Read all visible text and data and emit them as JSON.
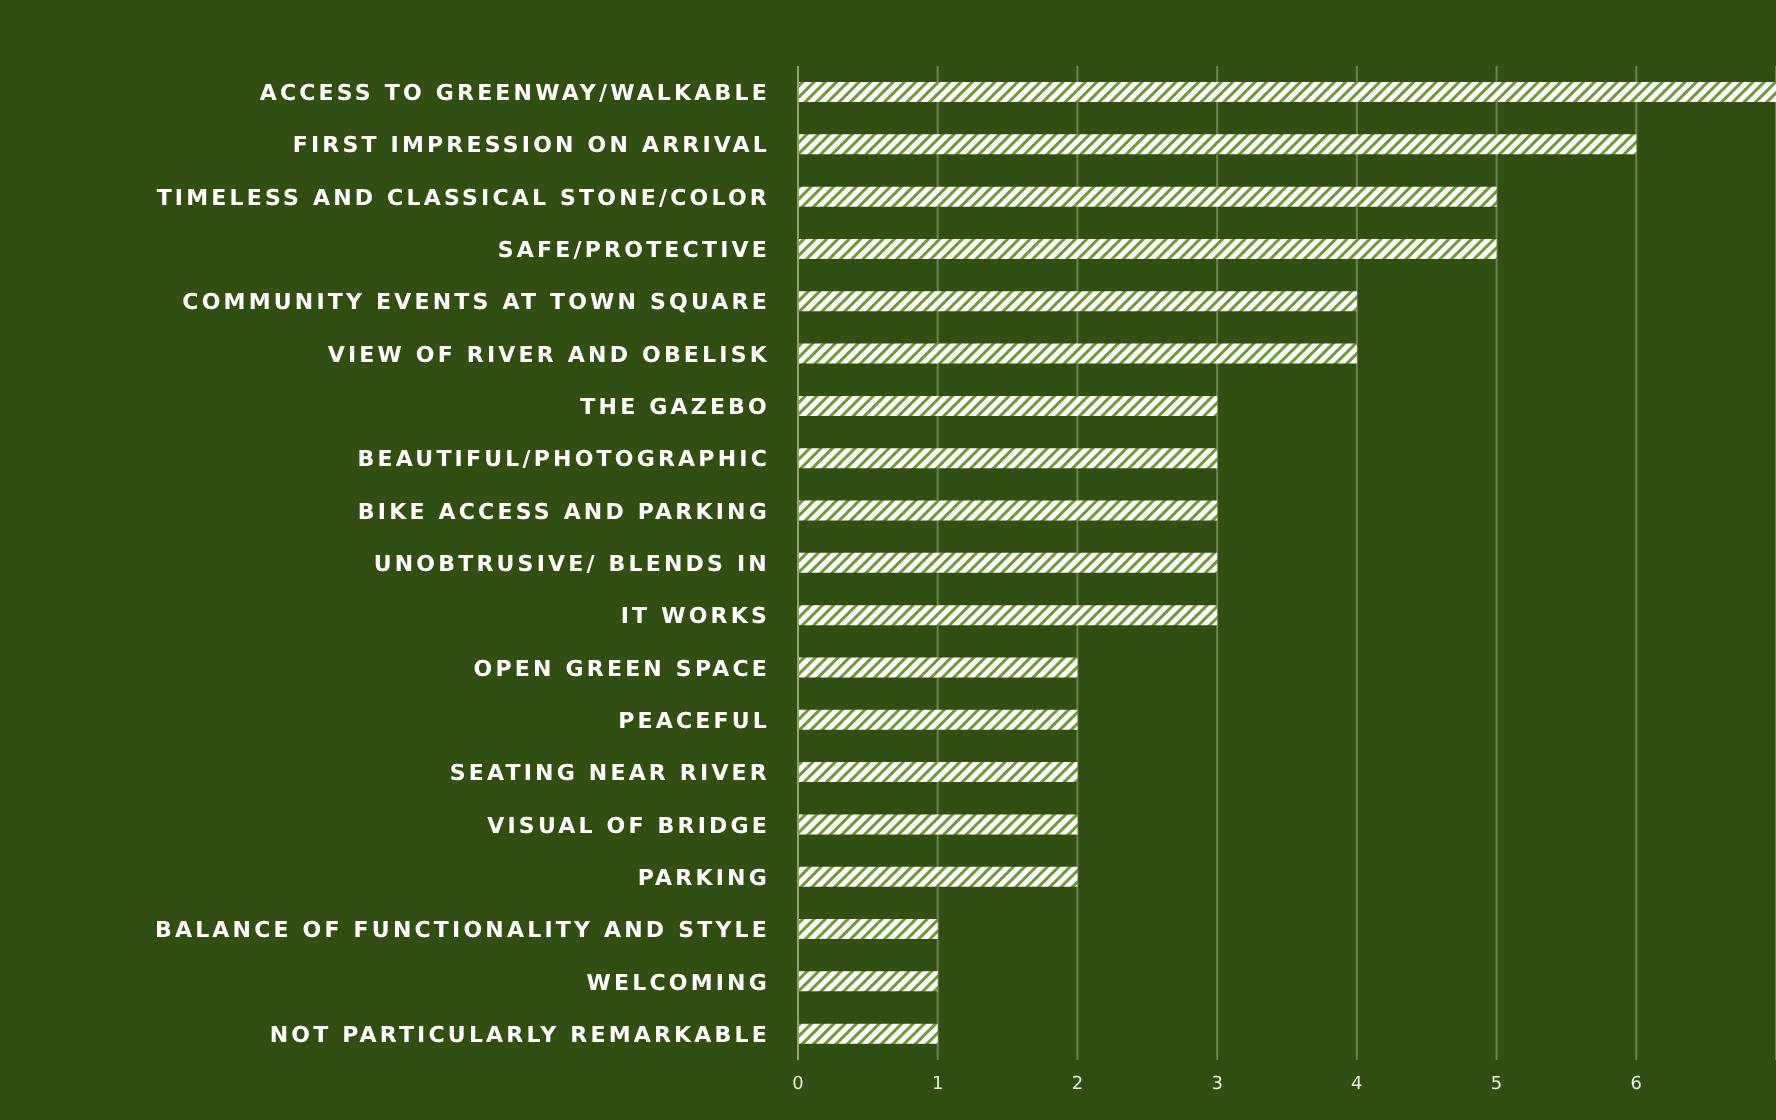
{
  "chart_data": {
    "type": "bar",
    "orientation": "horizontal",
    "categories": [
      "ACCESS TO GREENWAY/WALKABLE",
      "FIRST IMPRESSION ON ARRIVAL",
      "TIMELESS AND CLASSICAL STONE/COLOR",
      "SAFE/PROTECTIVE",
      "COMMUNITY EVENTS AT TOWN SQUARE",
      "VIEW OF RIVER AND OBELISK",
      "THE GAZEBO",
      "BEAUTIFUL/PHOTOGRAPHIC",
      "BIKE ACCESS AND PARKING",
      "UNOBTRUSIVE/ BLENDS IN",
      "IT WORKS",
      "OPEN GREEN SPACE",
      "PEACEFUL",
      "SEATING NEAR RIVER",
      "VISUAL OF BRIDGE",
      "PARKING",
      "BALANCE OF FUNCTIONALITY AND STYLE",
      "WELCOMING",
      "NOT PARTICULARLY REMARKABLE"
    ],
    "values": [
      7,
      6,
      5,
      5,
      4,
      4,
      3,
      3,
      3,
      3,
      3,
      2,
      2,
      2,
      2,
      2,
      1,
      1,
      1
    ],
    "color": "#ffffff",
    "xlim": [
      0,
      7
    ],
    "xticks": [
      0,
      1,
      2,
      3,
      4,
      5,
      6
    ],
    "grid": "x"
  }
}
